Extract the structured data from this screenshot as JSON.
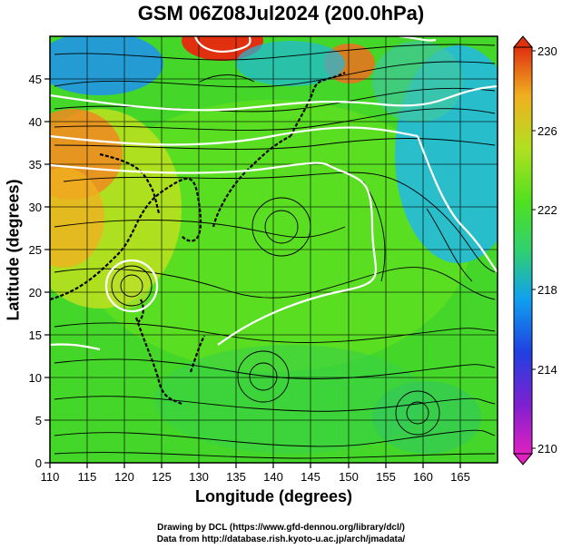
{
  "title": "GSM 06Z08Jul2024 (200.0hPa)",
  "xlabel": "Longitude (degrees)",
  "ylabel": "Latitude  (degrees)",
  "credits": {
    "line1": "Drawing by DCL (https://www.gfd-dennou.org/library/dcl/)",
    "line2": "Data from http://database.rish.kyoto-u.ac.jp/arch/jmadata/"
  },
  "map": {
    "x_ticks": [
      "110",
      "115",
      "120",
      "125",
      "130",
      "135",
      "140",
      "145",
      "150",
      "155",
      "160",
      "165"
    ],
    "y_ticks": [
      "0",
      "5",
      "10",
      "15",
      "20",
      "25",
      "30",
      "35",
      "40",
      "45"
    ],
    "xlim": [
      110,
      170
    ],
    "ylim": [
      0,
      50
    ]
  },
  "colorbar": {
    "labels": [
      "230",
      "226",
      "222",
      "218",
      "214",
      "210"
    ],
    "range": [
      210,
      230
    ],
    "colors": [
      "#e020c0",
      "#4020d0",
      "#1070f0",
      "#20c0e8",
      "#30d060",
      "#50e020",
      "#c0e020",
      "#f0c020",
      "#f07020",
      "#e03010"
    ]
  }
}
